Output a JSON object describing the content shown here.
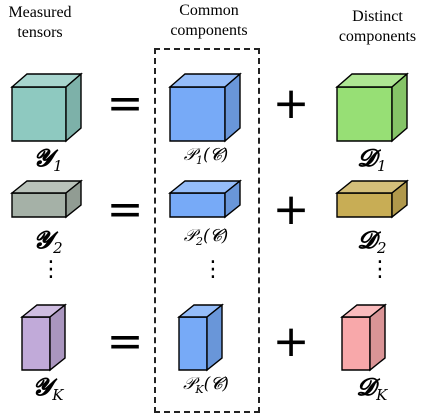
{
  "headers": {
    "measured": [
      "Measured",
      "tensors"
    ],
    "common": [
      "Common",
      "components"
    ],
    "distinct": [
      "Distinct",
      "components"
    ]
  },
  "operators": {
    "equals": "=",
    "plus": "+"
  },
  "rows": [
    {
      "y_main": "𝓨",
      "y_sub": "1",
      "p_main": "𝒫",
      "p_sub": "1",
      "p_arg": "(𝓒)",
      "d_main": "𝓓",
      "d_sub": "1",
      "colors": {
        "y": "#8ec9c0",
        "c": "#77aaf7",
        "d": "#97df75"
      }
    },
    {
      "y_main": "𝓨",
      "y_sub": "2",
      "p_main": "𝒫",
      "p_sub": "2",
      "p_arg": "(𝓒)",
      "d_main": "𝓓",
      "d_sub": "2",
      "colors": {
        "y": "#a5b1a7",
        "c": "#77aaf7",
        "d": "#c8ad55"
      }
    },
    {
      "y_main": "𝓨",
      "y_sub": "K",
      "p_main": "𝒫",
      "p_sub": "K",
      "p_arg": "(𝓒)",
      "d_main": "𝓓",
      "d_sub": "K",
      "colors": {
        "y": "#c1aad9",
        "c": "#77aaf7",
        "d": "#f8a8aa"
      }
    }
  ],
  "ellipsis": "⋮"
}
